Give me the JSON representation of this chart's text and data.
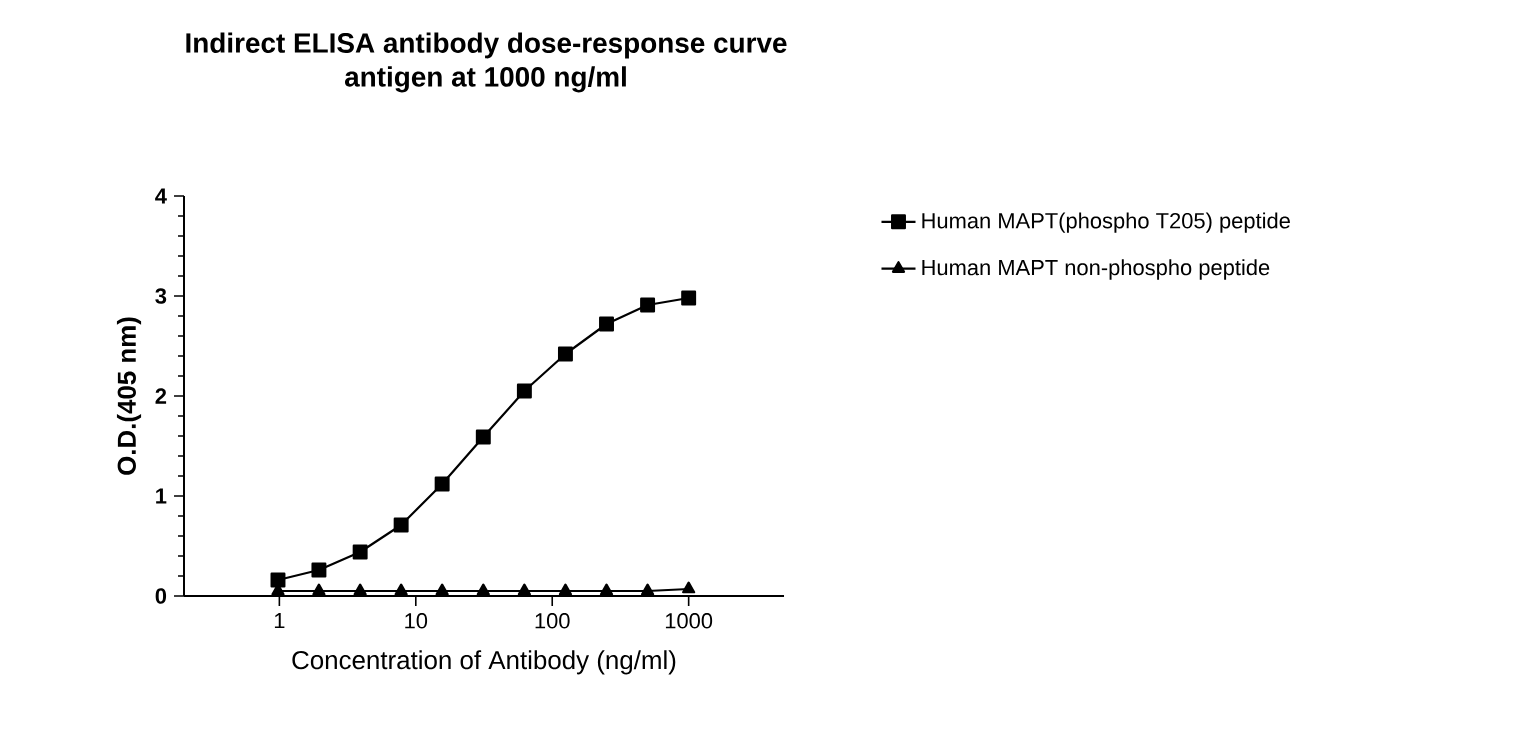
{
  "chart_data": {
    "type": "line",
    "title": "Indirect ELISA antibody dose-response curve\nantigen at 1000 ng/ml",
    "xlabel": "Concentration of Antibody (ng/ml)",
    "ylabel": "O.D.(405 nm)",
    "x": [
      0.977,
      1.95,
      3.91,
      7.81,
      15.6,
      31.25,
      62.5,
      125,
      250,
      500,
      1000
    ],
    "series": [
      {
        "name": "Human MAPT(phospho T205) peptide",
        "color": "#000000",
        "marker": "square",
        "values": [
          0.16,
          0.26,
          0.44,
          0.71,
          1.12,
          1.59,
          2.05,
          2.42,
          2.72,
          2.91,
          2.98
        ]
      },
      {
        "name": "Human MAPT non-phospho peptide",
        "color": "#000000",
        "marker": "triangle",
        "values": [
          0.05,
          0.05,
          0.05,
          0.05,
          0.05,
          0.05,
          0.05,
          0.05,
          0.05,
          0.05,
          0.07
        ]
      }
    ],
    "log": "x",
    "xlim": [
      0.2,
      5000
    ],
    "xticks": [
      1,
      10,
      100,
      1000
    ],
    "ylim": [
      0,
      4
    ],
    "yticks": [
      0,
      1,
      2,
      3,
      4
    ],
    "grid": false,
    "legend": "right",
    "line_style": "solid"
  }
}
